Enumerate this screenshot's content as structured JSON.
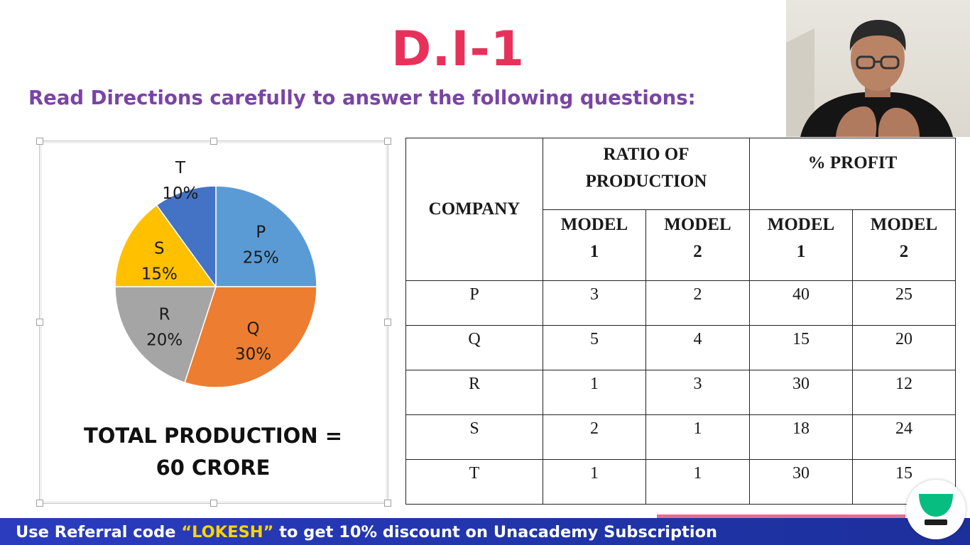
{
  "title": "D.I-1",
  "directions": "Read Directions carefully to answer the following questions:",
  "chart_data": {
    "type": "pie",
    "slices": [
      {
        "label": "P",
        "value": 25,
        "value_label": "25%",
        "color": "#5b9bd5"
      },
      {
        "label": "Q",
        "value": 30,
        "value_label": "30%",
        "color": "#ed7d31"
      },
      {
        "label": "R",
        "value": 20,
        "value_label": "20%",
        "color": "#a5a5a5"
      },
      {
        "label": "S",
        "value": 15,
        "value_label": "15%",
        "color": "#ffc000"
      },
      {
        "label": "T",
        "value": 10,
        "value_label": "10%",
        "color": "#4472c4"
      }
    ],
    "caption_line1": "TOTAL PRODUCTION =",
    "caption_line2": "60 CRORE"
  },
  "table": {
    "company_header": "COMPANY",
    "ratio_header_line1": "RATIO OF",
    "ratio_header_line2": "PRODUCTION",
    "profit_header": "% PROFIT",
    "model_label": "MODEL",
    "model1_num": "1",
    "model2_num": "2",
    "rows": [
      {
        "company": "P",
        "ratio_m1": "3",
        "ratio_m2": "2",
        "profit_m1": "40",
        "profit_m2": "25"
      },
      {
        "company": "Q",
        "ratio_m1": "5",
        "ratio_m2": "4",
        "profit_m1": "15",
        "profit_m2": "20"
      },
      {
        "company": "R",
        "ratio_m1": "1",
        "ratio_m2": "3",
        "profit_m1": "30",
        "profit_m2": "12"
      },
      {
        "company": "S",
        "ratio_m1": "2",
        "ratio_m2": "1",
        "profit_m1": "18",
        "profit_m2": "24"
      },
      {
        "company": "T",
        "ratio_m1": "1",
        "ratio_m2": "1",
        "profit_m1": "30",
        "profit_m2": "15"
      }
    ]
  },
  "promo": {
    "prefix": "Use Referral code ",
    "code": "“LOKESH”",
    "suffix": " to get 10% discount on Unacademy Subscription"
  },
  "colors": {
    "title": "#e8315a",
    "directions": "#7a44a6",
    "promo_bar": "#2b3cbf",
    "promo_code": "#ffd400",
    "logo": "#08bd80"
  },
  "icons": {
    "logo": "unacademy-logo-icon",
    "webcam": "presenter-video-feed"
  }
}
